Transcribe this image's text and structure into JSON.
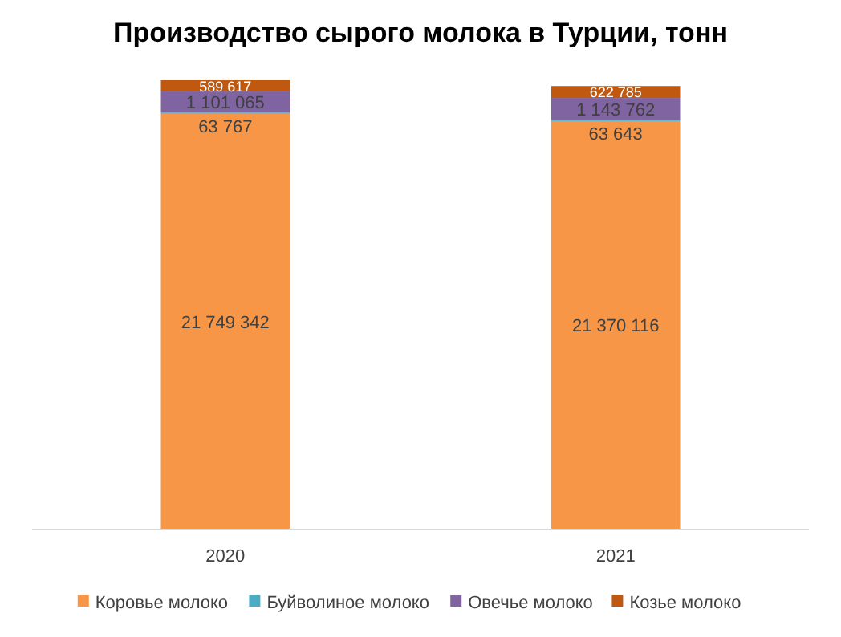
{
  "chart_data": {
    "type": "bar",
    "stacked": true,
    "title": "Производство сырого молока в Турции, тонн",
    "categories": [
      "2020",
      "2021"
    ],
    "tick_labels": "x",
    "legend": "bottom",
    "series": [
      {
        "name": "Коровье молоко",
        "color": "#f79646",
        "values": [
          21749342,
          21370116
        ],
        "value_labels": [
          "21 749 342",
          "21 370 116"
        ]
      },
      {
        "name": "Буйволиное молоко",
        "color": "#4bacc6",
        "values": [
          63767,
          63643
        ],
        "value_labels": [
          "63 767",
          "63 643"
        ]
      },
      {
        "name": "Овечье молоко",
        "color": "#8064a2",
        "values": [
          1101065,
          1143762
        ],
        "value_labels": [
          "1 101 065",
          "1 143 762"
        ]
      },
      {
        "name": "Козье молоко",
        "color": "#c0580f",
        "values": [
          589617,
          622785
        ],
        "value_labels": [
          "589 617",
          "622 785"
        ]
      }
    ]
  }
}
